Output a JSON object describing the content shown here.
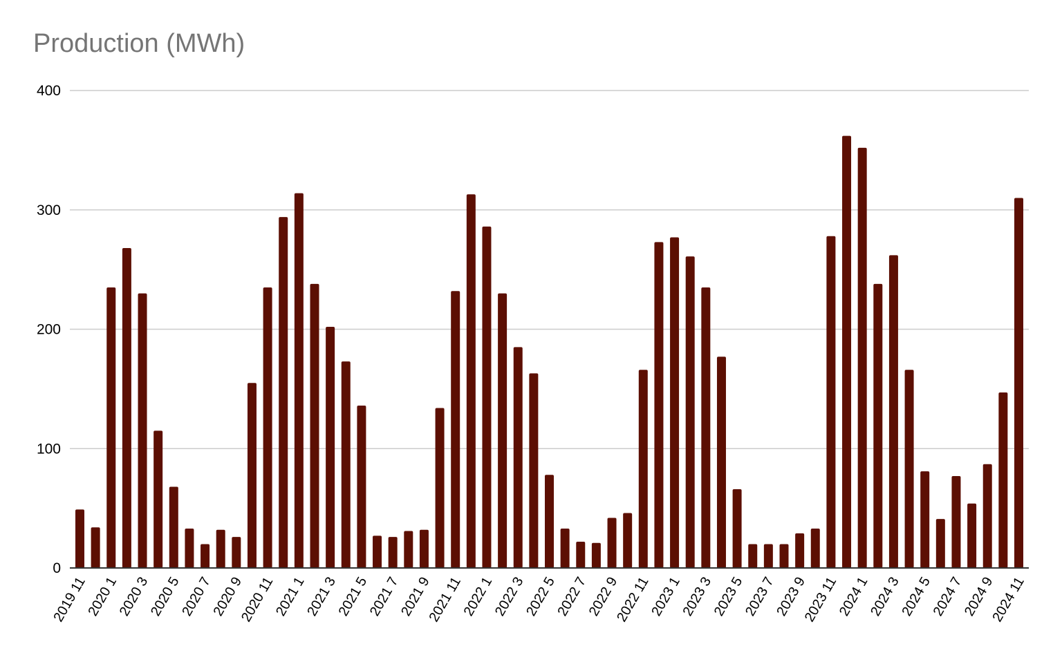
{
  "chart_data": {
    "type": "bar",
    "title": "Production (MWh)",
    "xlabel": "",
    "ylabel": "",
    "ylim": [
      0,
      400
    ],
    "yticks": [
      "0",
      "100",
      "200",
      "300",
      "400"
    ],
    "grid": true,
    "legend": "none",
    "bar_color": "#5c0f03",
    "categories": [
      "2019 11",
      "2019 12",
      "2020 1",
      "2020 2",
      "2020 3",
      "2020 4",
      "2020 5",
      "2020 6",
      "2020 7",
      "2020 8",
      "2020 9",
      "2020 10",
      "2020 11",
      "2020 12",
      "2021 1",
      "2021 2",
      "2021 3",
      "2021 4",
      "2021 5",
      "2021 6",
      "2021 7",
      "2021 8",
      "2021 9",
      "2021 10",
      "2021 11",
      "2021 12",
      "2022 1",
      "2022 2",
      "2022 3",
      "2022 4",
      "2022 5",
      "2022 6",
      "2022 7",
      "2022 8",
      "2022 9",
      "2022 10",
      "2022 11",
      "2022 12",
      "2023 1",
      "2023 2",
      "2023 3",
      "2023 4",
      "2023 5",
      "2023 6",
      "2023 7",
      "2023 8",
      "2023 9",
      "2023 10",
      "2023 11",
      "2023 12",
      "2024 1",
      "2024 2",
      "2024 3",
      "2024 4",
      "2024 5",
      "2024 6",
      "2024 7",
      "2024 8",
      "2024 9",
      "2024 10",
      "2024 11"
    ],
    "visible_tick_labels": [
      "2019 11",
      "2020 1",
      "2020 3",
      "2020 5",
      "2020 7",
      "2020 9",
      "2020 11",
      "2021 1",
      "2021 3",
      "2021 5",
      "2021 7",
      "2021 9",
      "2021 11",
      "2022 1",
      "2022 3",
      "2022 5",
      "2022 7",
      "2022 9",
      "2022 11",
      "2023 1",
      "2023 3",
      "2023 5",
      "2023 7",
      "2023 9",
      "2023 11",
      "2024 1",
      "2024 3",
      "2024 5",
      "2024 7",
      "2024 9",
      "2024 11"
    ],
    "values": [
      49,
      34,
      235,
      268,
      230,
      115,
      68,
      33,
      20,
      32,
      26,
      155,
      235,
      294,
      314,
      238,
      202,
      173,
      136,
      27,
      26,
      31,
      32,
      134,
      232,
      313,
      286,
      230,
      185,
      163,
      78,
      33,
      22,
      21,
      42,
      46,
      166,
      273,
      277,
      261,
      235,
      177,
      66,
      20,
      20,
      20,
      29,
      33,
      278,
      362,
      352,
      238,
      262,
      166,
      81,
      41,
      77,
      54,
      87,
      147,
      310
    ]
  }
}
